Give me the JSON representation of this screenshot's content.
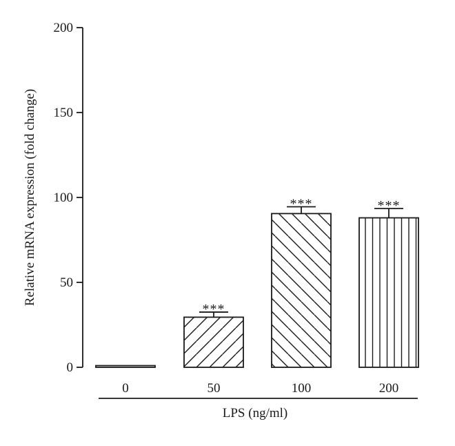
{
  "chart_data": {
    "type": "bar",
    "title": "",
    "xlabel": "LPS (ng/ml)",
    "ylabel": "Relative mRNA expression (fold change)",
    "ylim": [
      0,
      200
    ],
    "yticks": [
      0,
      50,
      100,
      150,
      200
    ],
    "categories": [
      "0",
      "50",
      "100",
      "200"
    ],
    "values": [
      1,
      29.5,
      90.5,
      88
    ],
    "errors": [
      0,
      3,
      4,
      5.5
    ],
    "significance": [
      "",
      "***",
      "***",
      "***"
    ],
    "patterns": [
      "none",
      "diagonal-forward",
      "diagonal-back",
      "vertical"
    ],
    "bar_color": "#ffffff",
    "line_color": "#1a1a1a",
    "grid": false,
    "legend": "none"
  }
}
